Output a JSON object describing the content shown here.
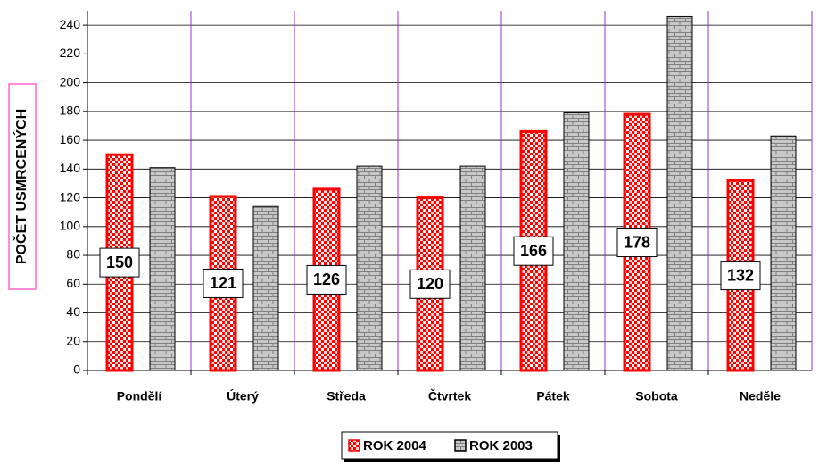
{
  "chart_data": {
    "type": "bar",
    "y_label": "POČET USMRCENÝCH",
    "categories": [
      "Pondělí",
      "Úterý",
      "Středa",
      "Čtvrtek",
      "Pátek",
      "Sobota",
      "Neděle"
    ],
    "series": [
      {
        "name": "ROK 2004",
        "color": "#ff0000",
        "values": [
          150,
          121,
          126,
          120,
          166,
          178,
          132
        ]
      },
      {
        "name": "ROK 2003",
        "color": "#808080",
        "values": [
          141,
          114,
          142,
          142,
          179,
          246,
          163
        ]
      }
    ],
    "ylim": [
      0,
      250
    ],
    "yticks": [
      0,
      20,
      40,
      60,
      80,
      100,
      120,
      140,
      160,
      180,
      200,
      220,
      240
    ],
    "grid": true,
    "legend": "bottom"
  }
}
